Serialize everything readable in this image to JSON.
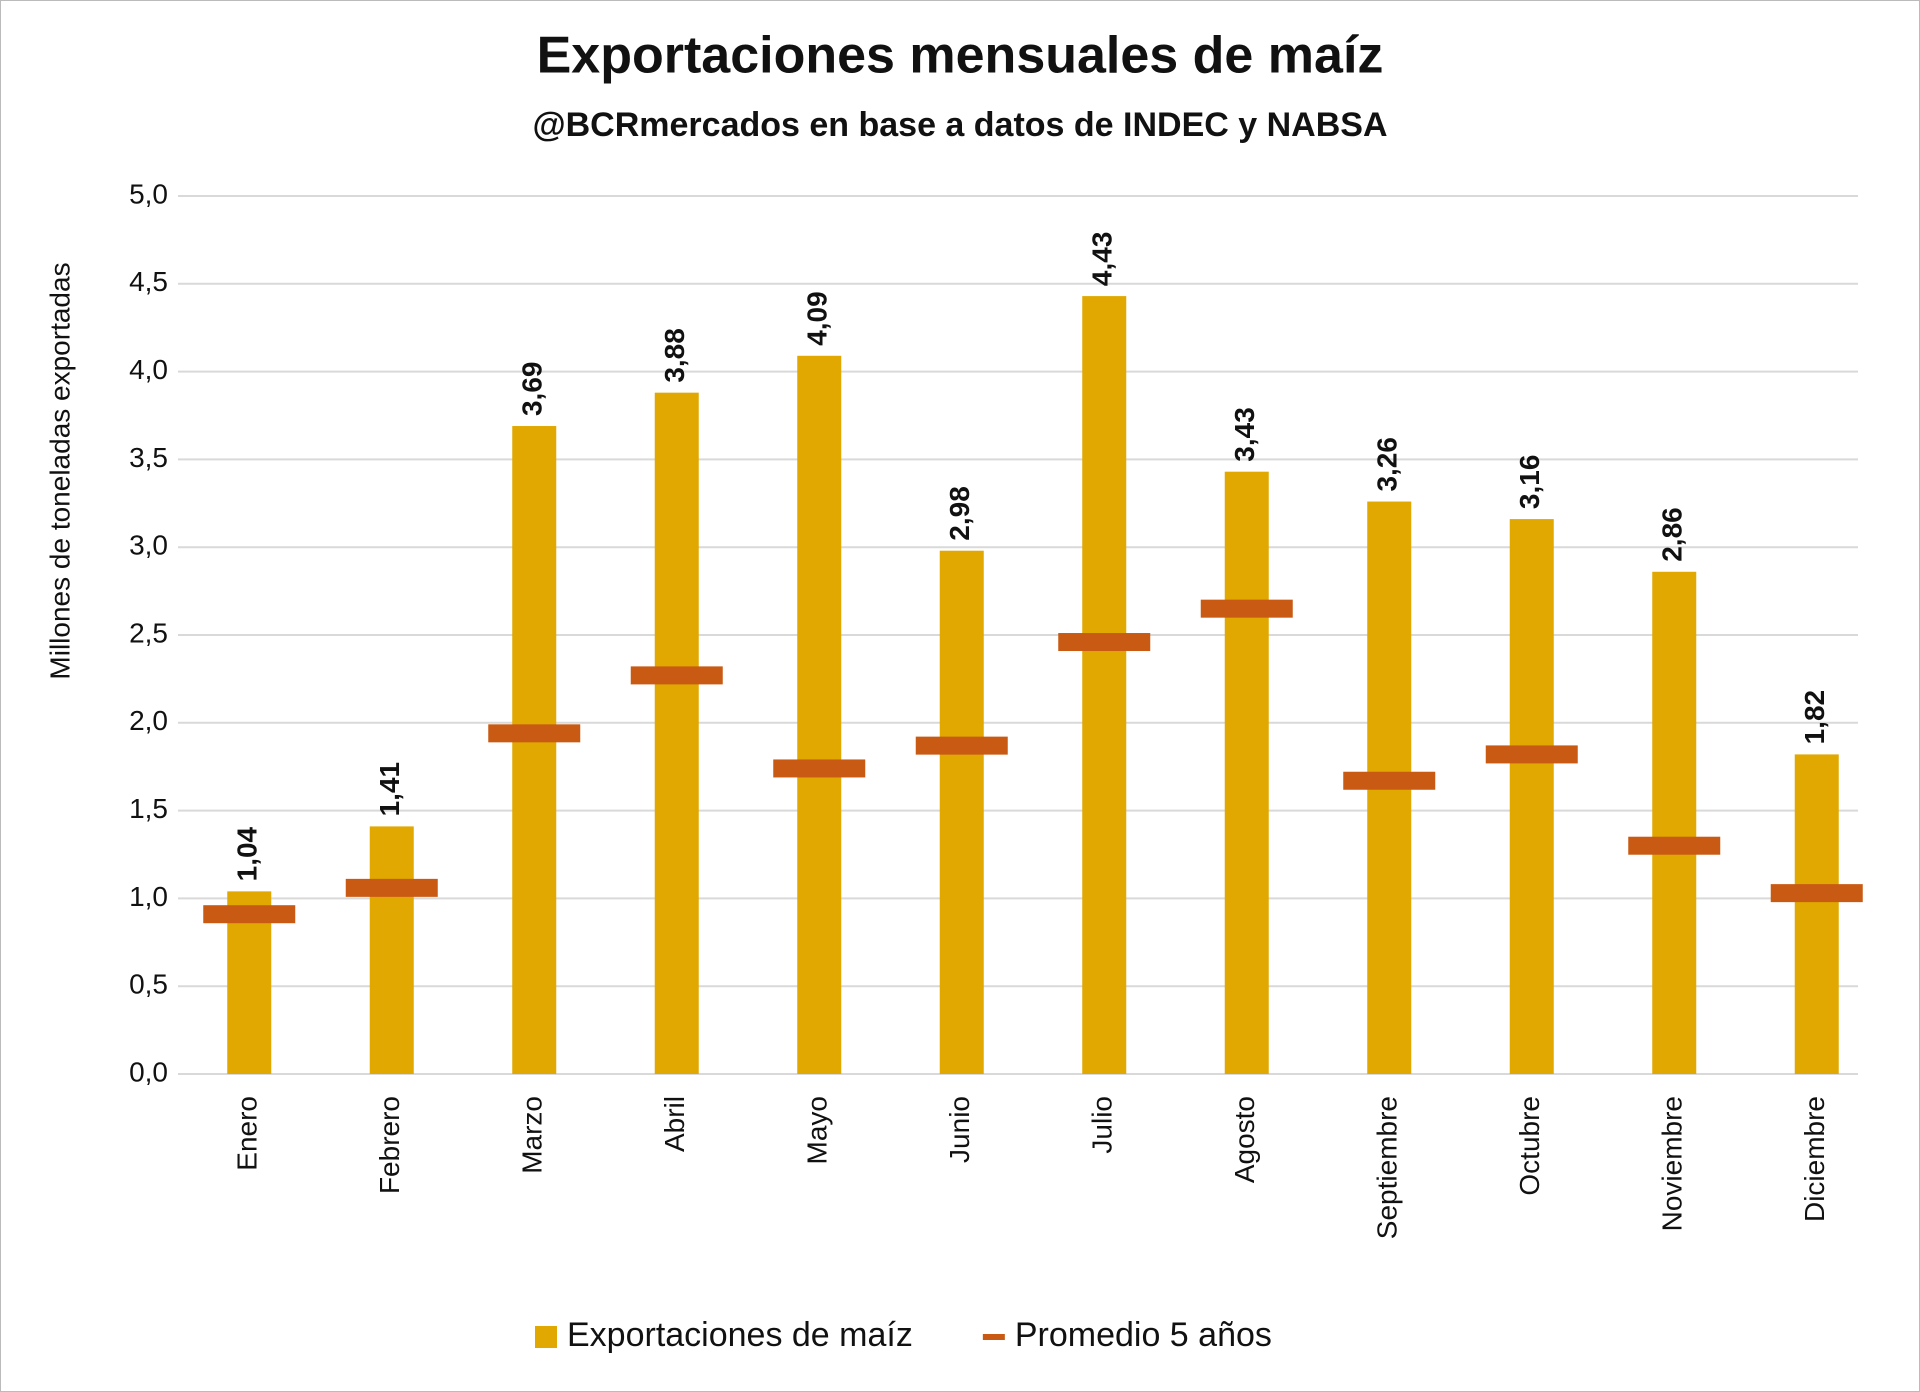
{
  "chart_data": {
    "type": "bar",
    "title": "Exportaciones mensuales de maíz",
    "subtitle": "@BCRmercados en base a datos de INDEC y NABSA",
    "y_label": "Millones de toneladas exportadas",
    "categories": [
      "Enero",
      "Febrero",
      "Marzo",
      "Abril",
      "Mayo",
      "Junio",
      "Julio",
      "Agosto",
      "Septiembre",
      "Octubre",
      "Noviembre",
      "Diciembre"
    ],
    "series": [
      {
        "name": "Exportaciones de maíz",
        "color": "#e0a800",
        "style": "bar",
        "values": [
          1.04,
          1.41,
          3.69,
          3.88,
          4.09,
          2.98,
          4.43,
          3.43,
          3.26,
          3.16,
          2.86,
          1.82
        ],
        "value_labels": [
          "1,04",
          "1,41",
          "3,69",
          "3,88",
          "4,09",
          "2,98",
          "4,43",
          "3,43",
          "3,26",
          "3,16",
          "2,86",
          "1,82"
        ]
      },
      {
        "name": "Promedio 5 años",
        "color": "#c85a14",
        "style": "marker",
        "values": [
          0.91,
          1.06,
          1.94,
          2.27,
          1.74,
          1.87,
          2.46,
          2.65,
          1.67,
          1.82,
          1.3,
          1.03
        ]
      }
    ],
    "ylim": [
      0,
      5
    ],
    "yticks": [
      {
        "value": 0,
        "label": "0,0"
      },
      {
        "value": 0.5,
        "label": "0,5"
      },
      {
        "value": 1,
        "label": "1,0"
      },
      {
        "value": 1.5,
        "label": "1,5"
      },
      {
        "value": 2,
        "label": "2,0"
      },
      {
        "value": 2.5,
        "label": "2,5"
      },
      {
        "value": 3,
        "label": "3,0"
      },
      {
        "value": 3.5,
        "label": "3,5"
      },
      {
        "value": 4,
        "label": "4,0"
      },
      {
        "value": 4.5,
        "label": "4,5"
      },
      {
        "value": 5,
        "label": "5,0"
      }
    ],
    "grid": true
  }
}
